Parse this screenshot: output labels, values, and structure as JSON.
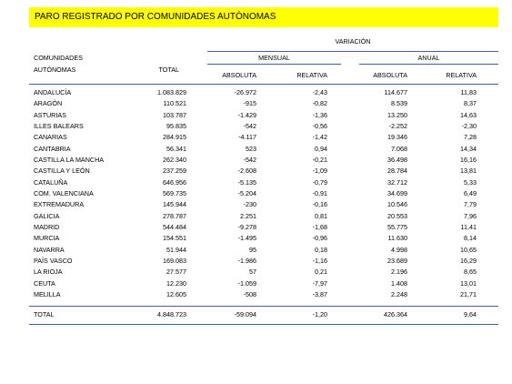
{
  "title": "PARO REGISTRADO POR COMUNIDADES AUTÓNOMAS",
  "header": {
    "variation": "VARIACIÓN",
    "region_1": "COMUNIDADES",
    "region_2": "AUTÓNOMAS",
    "total": "TOTAL",
    "monthly": "MENSUAL",
    "annual": "ANUAL",
    "columns": [
      "ABSOLUTA",
      "RELATIVA",
      "ABSOLUTA",
      "RELATIVA"
    ]
  },
  "table": {
    "rows": [
      [
        "ANDALUCÍA",
        "1.083.829",
        "-26.972",
        "-2,43",
        "114.677",
        "11,83"
      ],
      [
        "ARAGÓN",
        "110.521",
        "-915",
        "-0,82",
        "8.539",
        "8,37"
      ],
      [
        "ASTURIAS",
        "103.787",
        "-1.429",
        "-1,36",
        "13.250",
        "14,63"
      ],
      [
        "ILLES BALEARS",
        "95.835",
        "-542",
        "-0,56",
        "-2.252",
        "-2,30"
      ],
      [
        "CANARIAS",
        "284.915",
        "-4.117",
        "-1,42",
        "19.346",
        "7,28"
      ],
      [
        "CANTABRIA",
        "56.341",
        "523",
        "0,94",
        "7.068",
        "14,34"
      ],
      [
        "CASTILLA LA MANCHA",
        "262.340",
        "-542",
        "-0,21",
        "36.498",
        "16,16"
      ],
      [
        "CASTILLA Y LEÓN",
        "237.259",
        "-2.608",
        "-1,09",
        "28.784",
        "13,81"
      ],
      [
        "CATALUÑA",
        "646.956",
        "-5.135",
        "-0,79",
        "32.712",
        "5,33"
      ],
      [
        "COM. VALENCIANA",
        "569.735",
        "-5.204",
        "-0,91",
        "34.699",
        "6,49"
      ],
      [
        "EXTREMADURA",
        "145.944",
        "-230",
        "-0,16",
        "10.546",
        "7,79"
      ],
      [
        "GALICIA",
        "278.787",
        "2.251",
        "0,81",
        "20.553",
        "7,96"
      ],
      [
        "MADRID",
        "544.484",
        "-9.278",
        "-1,68",
        "55.775",
        "11,41"
      ],
      [
        "MURCIA",
        "154.551",
        "-1.495",
        "-0,96",
        "11.630",
        "8,14"
      ],
      [
        "NAVARRA",
        "51.944",
        "95",
        "0,18",
        "4.998",
        "10,65"
      ],
      [
        "PAÍS VASCO",
        "169.083",
        "-1.986",
        "-1,16",
        "23.689",
        "16,29"
      ],
      [
        "LA RIOJA",
        "27.577",
        "57",
        "0,21",
        "2.196",
        "8,65"
      ],
      [
        "CEUTA",
        "12.230",
        "-1.059",
        "-7,97",
        "1.408",
        "13,01"
      ],
      [
        "MELILLA",
        "12.605",
        "-508",
        "-3,87",
        "2.248",
        "21,71"
      ]
    ],
    "total": [
      "TOTAL",
      "4.848.723",
      "-59.094",
      "-1,20",
      "426.364",
      "9,64"
    ]
  }
}
